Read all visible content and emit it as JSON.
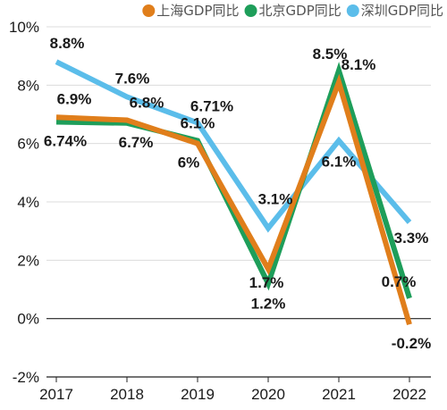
{
  "chart_data": {
    "type": "line",
    "categories": [
      "2017",
      "2018",
      "2019",
      "2020",
      "2021",
      "2022"
    ],
    "ylim": [
      -2,
      10
    ],
    "yticks": [
      -2,
      0,
      2,
      4,
      6,
      8,
      10
    ],
    "ytick_labels": [
      "-2%",
      "0%",
      "2%",
      "4%",
      "6%",
      "8%",
      "10%"
    ],
    "grid": "horizontal",
    "legend_position": "top-right",
    "series": [
      {
        "name": "上海GDP同比",
        "color": "#E07E1B",
        "values": [
          6.9,
          6.8,
          6.0,
          1.7,
          8.1,
          -0.2
        ],
        "labels": [
          "6.9%",
          "6.8%",
          "6%",
          "1.7%",
          "8.1%",
          "-0.2%"
        ]
      },
      {
        "name": "北京GDP同比",
        "color": "#1E9E5A",
        "values": [
          6.74,
          6.7,
          6.1,
          1.2,
          8.5,
          0.7
        ],
        "labels": [
          "6.74%",
          "6.7%",
          "6.1%",
          "1.2%",
          "8.5%",
          "0.7%"
        ]
      },
      {
        "name": "深圳GDP同比",
        "color": "#5BBDEA",
        "values": [
          8.8,
          7.6,
          6.71,
          3.1,
          6.1,
          3.3
        ],
        "labels": [
          "8.8%",
          "7.6%",
          "6.71%",
          "3.1%",
          "6.1%",
          "3.3%"
        ]
      }
    ]
  }
}
